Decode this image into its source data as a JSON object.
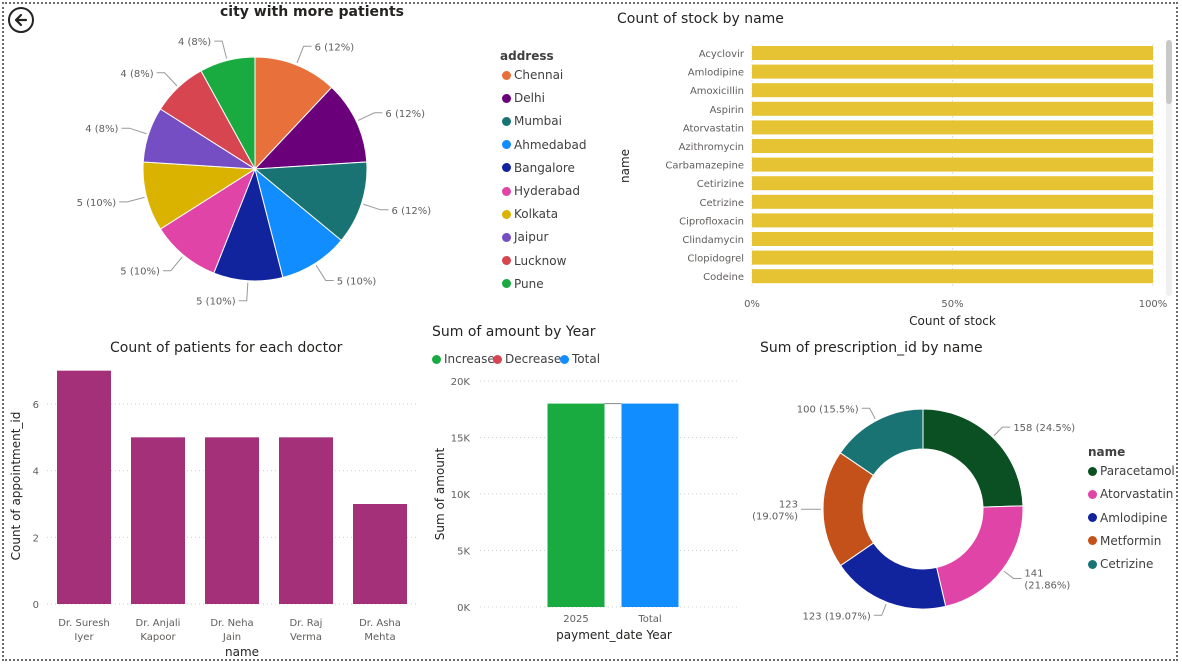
{
  "colors": {
    "pie": [
      "#e8703a",
      "#6b007b",
      "#1a7373",
      "#118dff",
      "#12239e",
      "#e044a7",
      "#d9b300",
      "#744ec2",
      "#d64550",
      "#1aab40"
    ],
    "stock_bar": "#e6c333",
    "doctor_bar": "#a43079",
    "increase": "#1aab40",
    "decrease": "#d64550",
    "total": "#118dff",
    "donut": [
      "#0b5022",
      "#e044a7",
      "#12239e",
      "#c4501a",
      "#1a7373"
    ]
  },
  "back_icon": "arrow-left-circle-icon",
  "pie_chart": {
    "title": "city with more patients",
    "legend_title": "address",
    "chart_data": {
      "type": "pie",
      "categories": [
        "Chennai",
        "Delhi",
        "Mumbai",
        "Ahmedabad",
        "Bangalore",
        "Hyderabad",
        "Kolkata",
        "Jaipur",
        "Lucknow",
        "Pune"
      ],
      "values": [
        6,
        6,
        6,
        5,
        5,
        5,
        5,
        4,
        4,
        4
      ],
      "labels": [
        "6 (12%)",
        "6 (12%)",
        "6 (12%)",
        "5 (10%)",
        "5 (10%)",
        "5 (10%)",
        "5 (10%)",
        "4 (8%)",
        "4 (8%)",
        "4 (8%)"
      ]
    }
  },
  "stock_chart": {
    "title": "Count of stock by name",
    "chart_data": {
      "type": "bar",
      "orientation": "horizontal",
      "categories": [
        "Acyclovir",
        "Amlodipine",
        "Amoxicillin",
        "Aspirin",
        "Atorvastatin",
        "Azithromycin",
        "Carbamazepine",
        "Cetirizine",
        "Cetrizine",
        "Ciprofloxacin",
        "Clindamycin",
        "Clopidogrel",
        "Codeine"
      ],
      "values": [
        100,
        100,
        100,
        100,
        100,
        100,
        100,
        100,
        100,
        100,
        100,
        100,
        100
      ],
      "xlabel": "Count of stock",
      "ylabel": "name",
      "xlim": [
        0,
        100
      ],
      "xticks": [
        "0%",
        "50%",
        "100%"
      ],
      "grid": true
    }
  },
  "doctor_chart": {
    "title": "Count of patients for each doctor",
    "chart_data": {
      "type": "bar",
      "categories": [
        [
          "Dr. Suresh",
          "Iyer"
        ],
        [
          "Dr. Anjali",
          "Kapoor"
        ],
        [
          "Dr. Neha",
          "Jain"
        ],
        [
          "Dr. Raj",
          "Verma"
        ],
        [
          "Dr. Asha",
          "Mehta"
        ]
      ],
      "values": [
        7,
        5,
        5,
        5,
        3
      ],
      "xlabel": "name",
      "ylabel": "Count of appointment_id",
      "ylim": [
        0,
        7.2
      ],
      "yticks": [
        0,
        2,
        4,
        6
      ],
      "grid": true
    }
  },
  "waterfall_chart": {
    "title": "Sum of amount by Year",
    "legend": [
      "Increase",
      "Decrease",
      "Total"
    ],
    "chart_data": {
      "type": "bar",
      "subtype": "waterfall",
      "categories": [
        "2025",
        "Total"
      ],
      "values": [
        18000,
        18000
      ],
      "kinds": [
        "Increase",
        "Total"
      ],
      "xlabel": "payment_date Year",
      "ylabel": "Sum of amount",
      "ylim": [
        0,
        20000
      ],
      "yticks": [
        "0K",
        "5K",
        "10K",
        "15K",
        "20K"
      ],
      "grid": true
    }
  },
  "donut_chart": {
    "title": "Sum of prescription_id by name",
    "legend_title": "name",
    "chart_data": {
      "type": "pie",
      "subtype": "donut",
      "categories": [
        "Paracetamol",
        "Atorvastatin",
        "Amlodipine",
        "Metformin",
        "Cetrizine"
      ],
      "values": [
        158,
        141,
        123,
        123,
        100
      ],
      "labels": [
        [
          "158 (24.5%)"
        ],
        [
          "141",
          "(21.86%)"
        ],
        [
          "123 (19.07%)"
        ],
        [
          "123",
          "(19.07%)"
        ],
        [
          "100 (15.5%)"
        ]
      ]
    }
  }
}
